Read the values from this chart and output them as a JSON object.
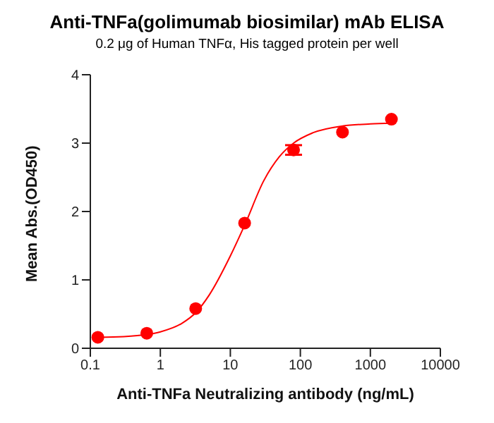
{
  "chart_data": {
    "type": "scatter",
    "title": "Anti-TNFa(golimumab biosimilar) mAb ELISA",
    "subtitle": "0.2 μg of Human TNFα, His tagged protein per well",
    "xlabel": "Anti-TNFa Neutralizing antibody (ng/mL)",
    "ylabel": "Mean Abs.(OD450)",
    "log": "x",
    "xlim": [
      0.1,
      10000
    ],
    "xticks": [
      0.1,
      1,
      10,
      100,
      1000,
      10000
    ],
    "ylim": [
      0,
      4
    ],
    "yticks": [
      0,
      1,
      2,
      3,
      4
    ],
    "grid": false,
    "legend": false,
    "marker": "circle",
    "series": [
      {
        "color": "#ff0000",
        "x": [
          0.128,
          0.64,
          3.2,
          16,
          80,
          400,
          2000
        ],
        "values": [
          0.16,
          0.22,
          0.58,
          1.83,
          2.9,
          3.16,
          3.35
        ],
        "errors": [
          null,
          null,
          null,
          null,
          0.07,
          null,
          null
        ]
      },
      {
        "type": "line",
        "color": "#ff0000",
        "marker": "none",
        "line_style": "solid",
        "x": [
          0.13,
          0.3,
          0.64,
          1,
          2,
          3.2,
          5,
          10,
          16,
          30,
          50,
          80,
          150,
          400,
          1000,
          2000
        ],
        "values": [
          0.16,
          0.17,
          0.2,
          0.24,
          0.36,
          0.52,
          0.78,
          1.35,
          1.8,
          2.45,
          2.8,
          3.0,
          3.15,
          3.25,
          3.28,
          3.29
        ]
      }
    ]
  }
}
